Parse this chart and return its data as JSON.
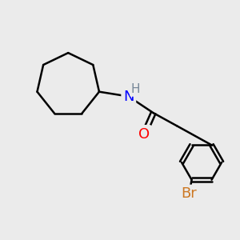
{
  "bg_color": "#ebebeb",
  "bond_color": "#000000",
  "bond_width": 1.8,
  "atom_colors": {
    "N": "#0000ff",
    "O": "#ff0000",
    "Br": "#cc7722",
    "H": "#778899",
    "C": "#000000"
  },
  "font_size_atoms": 13,
  "font_size_H": 11
}
